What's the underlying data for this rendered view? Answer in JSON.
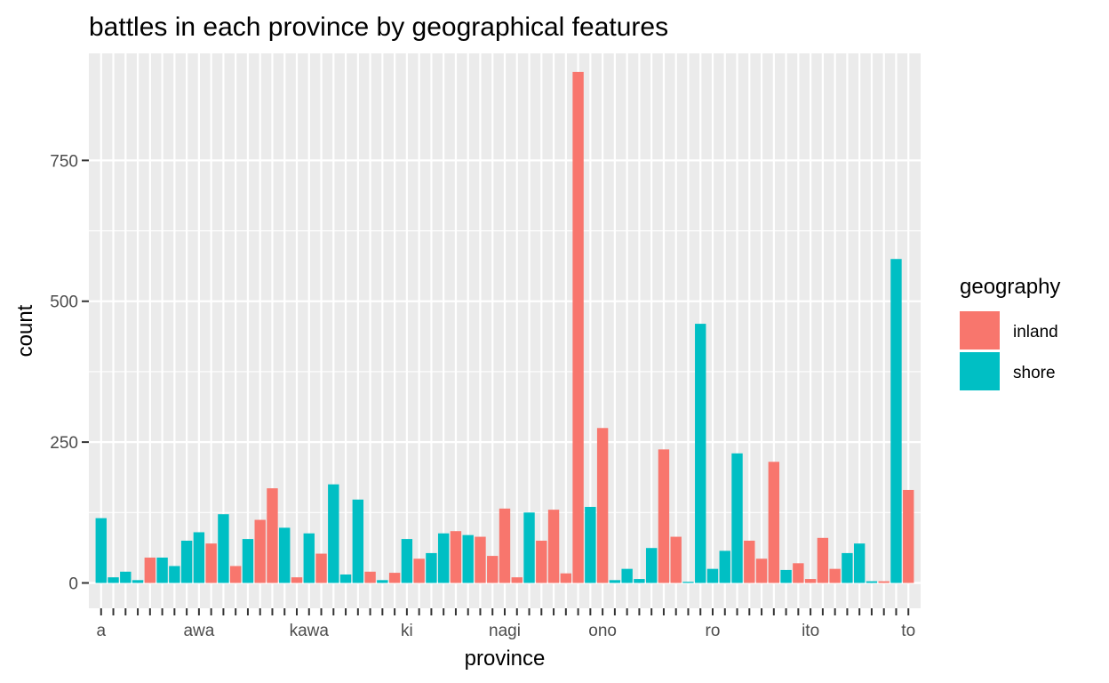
{
  "chart_data": {
    "type": "bar",
    "title": "battles in each province by geographical features",
    "xlabel": "province",
    "ylabel": "count",
    "ylim": [
      -45,
      940
    ],
    "y_ticks": [
      0,
      250,
      500,
      750
    ],
    "y_tick_labels": [
      "0",
      "250",
      "500",
      "750"
    ],
    "grid": true,
    "background": "#ebebeb",
    "x_tick_labels_visible": [
      "a",
      "awa",
      "kawa",
      "ki",
      "nagi",
      "ono",
      "ro",
      "ito",
      "to"
    ],
    "legend": {
      "title": "geography",
      "position": "right",
      "entries": [
        {
          "name": "inland",
          "color": "#F8766D"
        },
        {
          "name": "shore",
          "color": "#00BFC4"
        }
      ]
    },
    "bars": [
      {
        "group": "shore",
        "value": 115
      },
      {
        "group": "shore",
        "value": 10
      },
      {
        "group": "shore",
        "value": 20
      },
      {
        "group": "shore",
        "value": 5
      },
      {
        "group": "inland",
        "value": 45
      },
      {
        "group": "shore",
        "value": 45
      },
      {
        "group": "shore",
        "value": 30
      },
      {
        "group": "shore",
        "value": 75
      },
      {
        "group": "shore",
        "value": 90
      },
      {
        "group": "inland",
        "value": 70
      },
      {
        "group": "shore",
        "value": 122
      },
      {
        "group": "inland",
        "value": 30
      },
      {
        "group": "shore",
        "value": 78
      },
      {
        "group": "inland",
        "value": 112
      },
      {
        "group": "inland",
        "value": 168
      },
      {
        "group": "shore",
        "value": 98
      },
      {
        "group": "inland",
        "value": 10
      },
      {
        "group": "shore",
        "value": 88
      },
      {
        "group": "inland",
        "value": 52
      },
      {
        "group": "shore",
        "value": 175
      },
      {
        "group": "shore",
        "value": 15
      },
      {
        "group": "shore",
        "value": 148
      },
      {
        "group": "inland",
        "value": 20
      },
      {
        "group": "shore",
        "value": 5
      },
      {
        "group": "inland",
        "value": 18
      },
      {
        "group": "shore",
        "value": 78
      },
      {
        "group": "inland",
        "value": 43
      },
      {
        "group": "shore",
        "value": 53
      },
      {
        "group": "shore",
        "value": 88
      },
      {
        "group": "inland",
        "value": 92
      },
      {
        "group": "shore",
        "value": 85
      },
      {
        "group": "inland",
        "value": 82
      },
      {
        "group": "inland",
        "value": 48
      },
      {
        "group": "inland",
        "value": 132
      },
      {
        "group": "inland",
        "value": 10
      },
      {
        "group": "shore",
        "value": 125
      },
      {
        "group": "inland",
        "value": 75
      },
      {
        "group": "inland",
        "value": 130
      },
      {
        "group": "inland",
        "value": 17
      },
      {
        "group": "inland",
        "value": 907
      },
      {
        "group": "shore",
        "value": 135
      },
      {
        "group": "inland",
        "value": 275
      },
      {
        "group": "shore",
        "value": 5
      },
      {
        "group": "shore",
        "value": 25
      },
      {
        "group": "shore",
        "value": 7
      },
      {
        "group": "shore",
        "value": 62
      },
      {
        "group": "inland",
        "value": 237
      },
      {
        "group": "inland",
        "value": 82
      },
      {
        "group": "shore",
        "value": 2
      },
      {
        "group": "shore",
        "value": 460
      },
      {
        "group": "shore",
        "value": 25
      },
      {
        "group": "shore",
        "value": 57
      },
      {
        "group": "shore",
        "value": 230
      },
      {
        "group": "inland",
        "value": 75
      },
      {
        "group": "inland",
        "value": 43
      },
      {
        "group": "inland",
        "value": 215
      },
      {
        "group": "shore",
        "value": 23
      },
      {
        "group": "inland",
        "value": 35
      },
      {
        "group": "inland",
        "value": 7
      },
      {
        "group": "inland",
        "value": 80
      },
      {
        "group": "inland",
        "value": 25
      },
      {
        "group": "shore",
        "value": 53
      },
      {
        "group": "shore",
        "value": 70
      },
      {
        "group": "shore",
        "value": 3
      },
      {
        "group": "inland",
        "value": 3
      },
      {
        "group": "shore",
        "value": 575
      },
      {
        "group": "inland",
        "value": 165
      }
    ]
  }
}
